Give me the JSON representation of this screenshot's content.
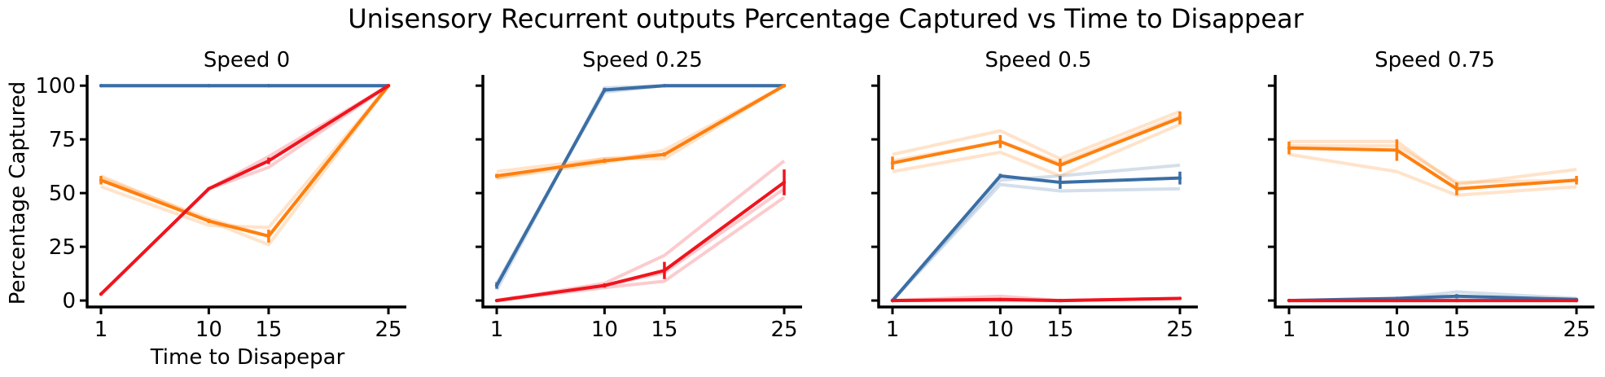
{
  "figure": {
    "title": "Unisensory Recurrent outputs Percentage Captured vs Time to Disappear",
    "ylabel": "Percentage Captured",
    "xlabel": "Time to Disapepar"
  },
  "colors": {
    "blue": "#3a6ea5",
    "orange": "#ff7f0e",
    "red": "#f0141e"
  },
  "chart_data": [
    {
      "type": "line",
      "title": "Speed 0",
      "x": [
        1,
        10,
        15,
        25
      ],
      "x_tick_labels": [
        "1",
        "10",
        "15",
        "25"
      ],
      "y_ticks": [
        0,
        25,
        50,
        75,
        100
      ],
      "ylim": [
        -3,
        105
      ],
      "grid": false,
      "series": [
        {
          "color": "blue",
          "values": [
            100,
            100,
            100,
            100
          ],
          "err": [
            0,
            0,
            0,
            0
          ],
          "runs": [
            [
              100,
              100,
              100,
              100
            ],
            [
              100,
              100,
              100,
              100
            ]
          ]
        },
        {
          "color": "orange",
          "values": [
            56,
            37,
            30,
            100
          ],
          "err": [
            2,
            1,
            3,
            0
          ],
          "runs": [
            [
              58,
              37,
              26,
              100
            ],
            [
              53,
              35,
              34,
              100
            ],
            [
              57,
              38,
              30,
              100
            ]
          ]
        },
        {
          "color": "red",
          "values": [
            3,
            52,
            65,
            100
          ],
          "err": [
            0.5,
            0.5,
            1.5,
            0
          ],
          "runs": [
            [
              3,
              52,
              62,
              100
            ],
            [
              3,
              52,
              67,
              100
            ]
          ]
        }
      ]
    },
    {
      "type": "line",
      "title": "Speed 0.25",
      "x": [
        1,
        10,
        15,
        25
      ],
      "x_tick_labels": [
        "1",
        "10",
        "15",
        "25"
      ],
      "y_ticks": [
        0,
        25,
        50,
        75,
        100
      ],
      "ylim": [
        -3,
        105
      ],
      "grid": false,
      "series": [
        {
          "color": "blue",
          "values": [
            7,
            98,
            100,
            100
          ],
          "err": [
            1.5,
            1,
            0,
            0
          ],
          "runs": [
            [
              5,
              99,
              100,
              100
            ],
            [
              8,
              97,
              100,
              100
            ]
          ]
        },
        {
          "color": "orange",
          "values": [
            58,
            65,
            68,
            100
          ],
          "err": [
            1,
            1,
            1,
            0
          ],
          "runs": [
            [
              57,
              64,
              70,
              100
            ],
            [
              60,
              66,
              66,
              100
            ],
            [
              57,
              66,
              68,
              100
            ]
          ]
        },
        {
          "color": "red",
          "values": [
            0,
            7,
            14,
            55
          ],
          "err": [
            0,
            1,
            4,
            6
          ],
          "runs": [
            [
              0,
              8,
              21,
              65
            ],
            [
              0,
              6,
              9,
              48
            ],
            [
              0,
              7,
              13,
              52
            ]
          ]
        }
      ]
    },
    {
      "type": "line",
      "title": "Speed 0.5",
      "x": [
        1,
        10,
        15,
        25
      ],
      "x_tick_labels": [
        "1",
        "10",
        "15",
        "25"
      ],
      "y_ticks": [
        0,
        25,
        50,
        75,
        100
      ],
      "ylim": [
        -3,
        105
      ],
      "grid": false,
      "series": [
        {
          "color": "blue",
          "values": [
            0,
            58,
            55,
            57
          ],
          "err": [
            0,
            1,
            3,
            3
          ],
          "runs": [
            [
              0,
              56,
              58,
              63
            ],
            [
              0,
              54,
              51,
              52
            ]
          ]
        },
        {
          "color": "orange",
          "values": [
            64,
            74,
            63,
            85
          ],
          "err": [
            3,
            3,
            3,
            3
          ],
          "runs": [
            [
              68,
              79,
              66,
              88
            ],
            [
              60,
              69,
              58,
              82
            ],
            [
              65,
              74,
              64,
              86
            ]
          ]
        },
        {
          "color": "red",
          "values": [
            0,
            0.5,
            0,
            1
          ],
          "err": [
            0,
            0,
            0,
            0
          ],
          "runs": [
            [
              0,
              2,
              0,
              1
            ],
            [
              0,
              0,
              0,
              1
            ]
          ]
        }
      ]
    },
    {
      "type": "line",
      "title": "Speed 0.75",
      "x": [
        1,
        10,
        15,
        25
      ],
      "x_tick_labels": [
        "1",
        "10",
        "15",
        "25"
      ],
      "y_ticks": [
        0,
        25,
        50,
        75,
        100
      ],
      "ylim": [
        -3,
        105
      ],
      "grid": false,
      "series": [
        {
          "color": "blue",
          "values": [
            0,
            1,
            2,
            0.5
          ],
          "err": [
            0,
            0,
            1,
            0
          ],
          "runs": [
            [
              0,
              1,
              4,
              1
            ],
            [
              0,
              0,
              1,
              0
            ]
          ]
        },
        {
          "color": "orange",
          "values": [
            71,
            70,
            52,
            56
          ],
          "err": [
            3,
            5,
            3,
            2
          ],
          "runs": [
            [
              74,
              74,
              54,
              61
            ],
            [
              68,
              60,
              49,
              53
            ],
            [
              72,
              72,
              55,
              56
            ]
          ]
        },
        {
          "color": "red",
          "values": [
            0,
            0,
            0,
            0
          ],
          "err": [
            0,
            0,
            0,
            0
          ],
          "runs": [
            [
              0,
              0,
              0,
              0
            ]
          ]
        }
      ]
    }
  ]
}
